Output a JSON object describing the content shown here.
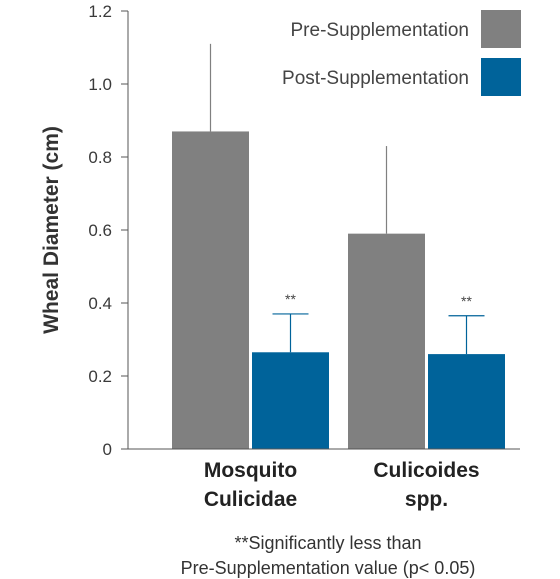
{
  "chart_data": {
    "type": "bar",
    "title": "",
    "xlabel": "",
    "ylabel": "Wheal Diameter (cm)",
    "ylim": [
      0,
      1.2
    ],
    "yticks": [
      "0",
      "0.2",
      "0.4",
      "0.6",
      "0.8",
      "1.0",
      "1.2"
    ],
    "categories": [
      [
        "Mosquito",
        "Culicidae"
      ],
      [
        "Culicoides",
        "spp."
      ]
    ],
    "series": [
      {
        "name": "Pre-Supplementation",
        "color": "#808080",
        "values": [
          0.87,
          0.59
        ],
        "error_upper": [
          1.11,
          0.83
        ]
      },
      {
        "name": "Post-Supplementation",
        "color": "#00639a",
        "values": [
          0.265,
          0.26
        ],
        "error_upper": [
          0.37,
          0.365
        ]
      }
    ],
    "annotations": [
      "**",
      "**"
    ],
    "legend_position": "top-right",
    "grid": false
  },
  "footnote": [
    "**Significantly less than",
    "Pre-Supplementation value (p< 0.05)"
  ]
}
